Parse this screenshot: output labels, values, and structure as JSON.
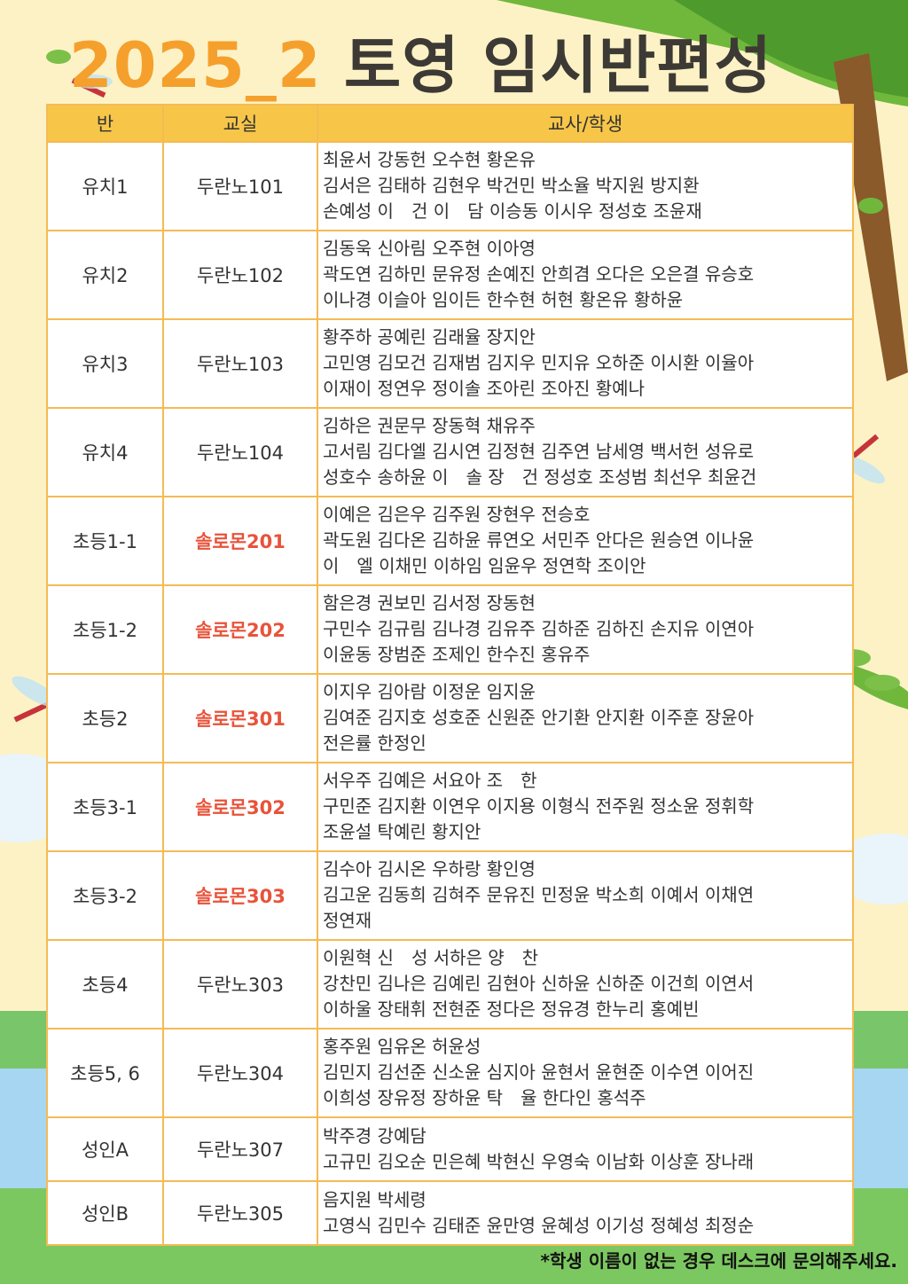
{
  "title": {
    "year": "2025_2",
    "text": "토영 임시반편성"
  },
  "table": {
    "header": [
      "반",
      "교실",
      "교사/학생"
    ],
    "rows": [
      {
        "class": "유치1",
        "room": "두란노101",
        "room_color": "#333333",
        "lines": [
          "최윤서 강동헌 오수현 황온유",
          "김서은 김태하 김현우 박건민 박소율 박지원 방지환",
          "손예성 이　건 이　담 이승동 이시우 정성호 조윤재"
        ]
      },
      {
        "class": "유치2",
        "room": "두란노102",
        "room_color": "#333333",
        "lines": [
          "김동욱 신아림 오주현 이아영",
          "곽도연 김하민 문유정 손예진 안희겸 오다은 오은결 유승호",
          "이나경 이슬아 임이든 한수현 허현 황온유 황하윤"
        ]
      },
      {
        "class": "유치3",
        "room": "두란노103",
        "room_color": "#333333",
        "lines": [
          "황주하 공예린 김래율 장지안",
          "고민영 김모건 김재범 김지우 민지유 오하준 이시환 이율아",
          "이재이 정연우 정이솔 조아린 조아진 황예나"
        ]
      },
      {
        "class": "유치4",
        "room": "두란노104",
        "room_color": "#333333",
        "lines": [
          "김하은 권문무 장동혁 채유주",
          "고서림 김다엘 김시연 김정현 김주연 남세영 백서헌 성유로",
          "성호수 송하윤 이　솔 장　건 정성호 조성범 최선우 최윤건"
        ]
      },
      {
        "class": "초등1-1",
        "room": "솔로몬201",
        "room_color": "#e8533a",
        "lines": [
          "이예은 김은우 김주원 장현우 전승호",
          "곽도원 김다온 김하윤 류연오 서민주 안다은 원승연 이나윤",
          "이　엘 이채민 이하임 임윤우 정연학 조이안"
        ]
      },
      {
        "class": "초등1-2",
        "room": "솔로몬202",
        "room_color": "#e8533a",
        "lines": [
          "함은경 권보민 김서정 장동현",
          "구민수 김규림 김나경 김유주 김하준 김하진 손지유 이연아",
          "이윤동 장범준 조제인 한수진 홍유주"
        ]
      },
      {
        "class": "초등2",
        "room": "솔로몬301",
        "room_color": "#e8533a",
        "lines": [
          "이지우 김아람 이정운 임지윤",
          "김여준 김지호 성호준 신원준 안기환 안지환 이주훈 장윤아",
          "전은률 한정인"
        ]
      },
      {
        "class": "초등3-1",
        "room": "솔로몬302",
        "room_color": "#e8533a",
        "lines": [
          "서우주 김예은 서요아 조　한",
          "구민준 김지환 이연우 이지용 이형식 전주원 정소윤 정휘학",
          "조윤설 탁예린 황지안"
        ]
      },
      {
        "class": "초등3-2",
        "room": "솔로몬303",
        "room_color": "#e8533a",
        "lines": [
          "김수아 김시온 우하랑 황인영",
          "김고운 김동희 김혀주 문유진 민정윤 박소희 이예서 이채연",
          "정연재"
        ]
      },
      {
        "class": "초등4",
        "room": "두란노303",
        "room_color": "#333333",
        "lines": [
          "이원혁 신　성 서하은 양　찬",
          "강찬민 김나은 김예린 김현아 신하윤 신하준 이건희 이연서",
          "이하울 장태휘 전현준 정다은 정유경 한누리 홍예빈"
        ]
      },
      {
        "class": "초등5, 6",
        "room": "두란노304",
        "room_color": "#333333",
        "lines": [
          "홍주원 임유온 허윤성",
          "김민지 김선준 신소윤 심지아 윤현서 윤현준 이수연 이어진",
          "이희성 장유정 장하윤 탁　율 한다인 홍석주"
        ]
      },
      {
        "class": "성인A",
        "room": "두란노307",
        "room_color": "#333333",
        "lines": [
          "박주경 강예담",
          "고규민 김오순 민은혜 박현신 우영숙 이남화 이상훈 장나래"
        ]
      },
      {
        "class": "성인B",
        "room": "두란노305",
        "room_color": "#333333",
        "lines": [
          "음지원 박세령",
          "고영식 김민수 김태준 윤만영 윤혜성 이기성 정혜성 최정순"
        ]
      }
    ]
  },
  "footnote": "*학생 이름이 없는 경우 데스크에 문의해주세요."
}
